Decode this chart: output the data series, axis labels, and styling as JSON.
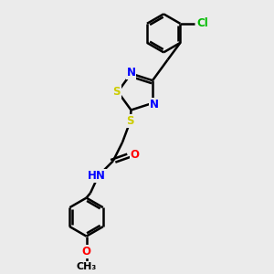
{
  "bg_color": "#ebebeb",
  "bond_color": "#000000",
  "bond_width": 1.8,
  "atom_colors": {
    "N": "#0000ff",
    "S": "#cccc00",
    "O": "#ff0000",
    "Cl": "#00bb00",
    "C": "#000000",
    "H": "#555555"
  },
  "font_size": 8.5,
  "fig_size": [
    3.0,
    3.0
  ],
  "dpi": 100
}
